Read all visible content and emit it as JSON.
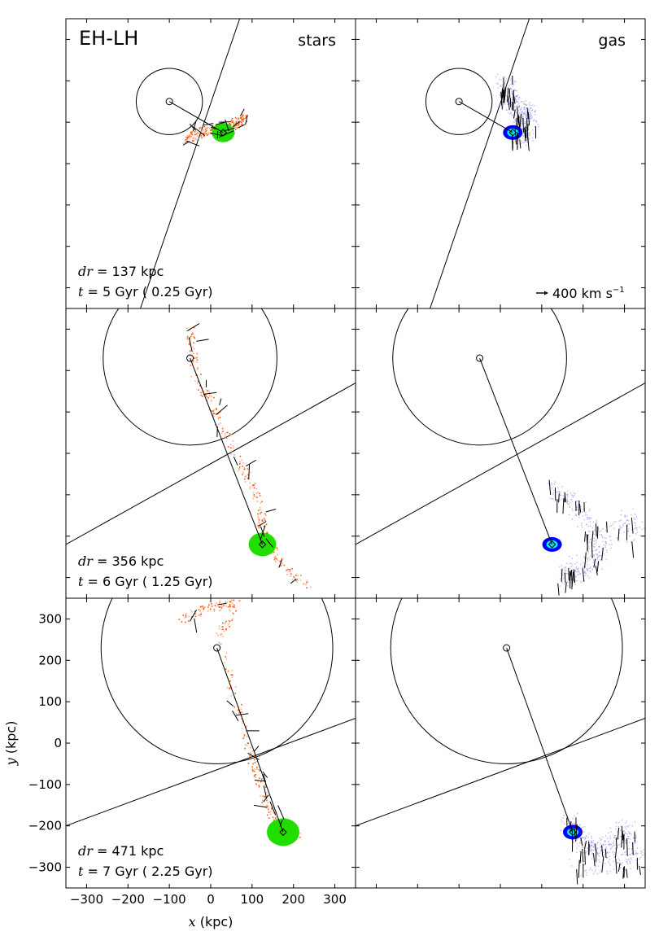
{
  "figure": {
    "label": "EH-LH",
    "column_titles": [
      "stars",
      "gas"
    ],
    "velocity_key": {
      "value_text": "400 km s",
      "superscript": "−1"
    }
  },
  "chart_data": {
    "type": "scatter",
    "description_kind": "simulation snapshots (2 columns x 3 rows)",
    "xlabel_var": "x",
    "xlabel_unit": "(kpc)",
    "ylabel_var": "y",
    "ylabel_unit": "(kpc)",
    "xlim": [
      -350,
      350
    ],
    "ylim": [
      -350,
      350
    ],
    "xticks": [
      -300,
      -200,
      -100,
      0,
      100,
      200,
      300
    ],
    "yticks": [
      -300,
      -200,
      -100,
      0,
      100,
      200,
      300
    ],
    "rows": [
      {
        "dr_label": "dr",
        "dr_value": " =  137 kpc",
        "t_label": "t",
        "t_value": " = 5 Gyr ( 0.25 Gyr)",
        "host": {
          "center": [
            -100,
            150
          ],
          "radius": 80
        },
        "satellite": [
          30,
          75
        ],
        "line": [
          [
            -170,
            -350
          ],
          [
            70,
            350
          ]
        ],
        "star_stream": [
          [
            -60,
            60
          ],
          [
            -20,
            80
          ],
          [
            10,
            85
          ],
          [
            40,
            70
          ],
          [
            60,
            100
          ],
          [
            80,
            110
          ]
        ],
        "gas_halo": [
          [
            10,
            200
          ],
          [
            20,
            160
          ],
          [
            50,
            130
          ],
          [
            70,
            110
          ],
          [
            40,
            80
          ],
          [
            60,
            60
          ]
        ]
      },
      {
        "dr_label": "dr",
        "dr_value": " =  356 kpc",
        "t_label": "t",
        "t_value": " = 6 Gyr ( 1.25 Gyr)",
        "host": {
          "center": [
            -50,
            230
          ],
          "radius": 210
        },
        "satellite": [
          125,
          -220
        ],
        "line": [
          [
            -350,
            -220
          ],
          [
            350,
            170
          ]
        ],
        "star_stream": [
          [
            -50,
            300
          ],
          [
            -40,
            200
          ],
          [
            10,
            100
          ],
          [
            70,
            -20
          ],
          [
            110,
            -100
          ],
          [
            130,
            -200
          ],
          [
            170,
            -270
          ],
          [
            240,
            -320
          ]
        ],
        "gas_halo": [
          [
            120,
            -80
          ],
          [
            180,
            -120
          ],
          [
            220,
            -180
          ],
          [
            250,
            -240
          ],
          [
            200,
            -280
          ],
          [
            150,
            -300
          ],
          [
            300,
            -150
          ],
          [
            330,
            -200
          ]
        ]
      },
      {
        "dr_label": "dr",
        "dr_value": " =  471 kpc",
        "t_label": "t",
        "t_value": " = 7 Gyr ( 2.25 Gyr)",
        "host": {
          "center": [
            15,
            230
          ],
          "radius": 280
        },
        "satellite": [
          175,
          -215
        ],
        "line": [
          [
            -350,
            -200
          ],
          [
            350,
            60
          ]
        ],
        "star_stream": [
          [
            -80,
            300
          ],
          [
            0,
            330
          ],
          [
            60,
            340
          ],
          [
            20,
            260
          ],
          [
            60,
            100
          ],
          [
            90,
            -20
          ],
          [
            120,
            -100
          ],
          [
            150,
            -180
          ],
          [
            210,
            -220
          ]
        ],
        "gas_halo": [
          [
            160,
            -180
          ],
          [
            200,
            -240
          ],
          [
            250,
            -260
          ],
          [
            300,
            -200
          ],
          [
            330,
            -280
          ],
          [
            180,
            -300
          ]
        ]
      }
    ]
  }
}
